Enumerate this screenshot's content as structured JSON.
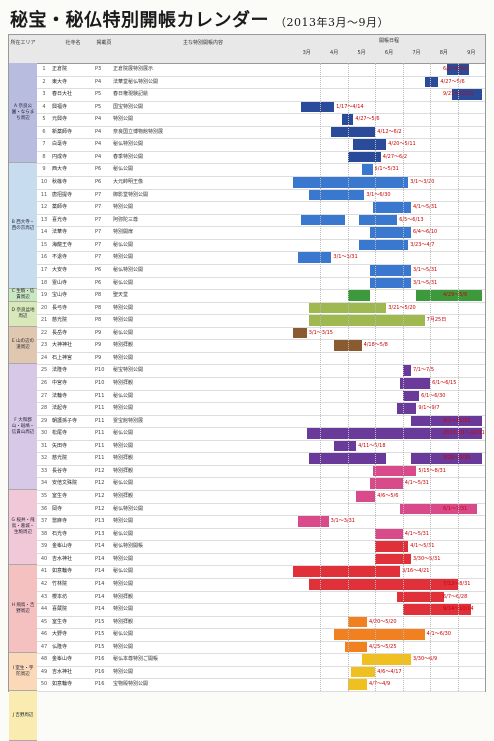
{
  "title": "秘宝・秘仏特別開帳カレンダー",
  "subtitle": "（2013年3月～9月）",
  "header": {
    "area": "所在エリア",
    "temple": "社寺名",
    "page": "掲載頁",
    "content": "主な特別開帳内容",
    "period": "開帳日程",
    "months": [
      "3月",
      "4月",
      "5月",
      "6月",
      "7月",
      "8月",
      "9月"
    ]
  },
  "colors": {
    "navy": "#2a4a9a",
    "blue": "#3a78d0",
    "green": "#3c9a3c",
    "olive": "#a0b850",
    "brown": "#8a5a30",
    "purple": "#6a3a9a",
    "pink": "#d84a8a",
    "red": "#e0303a",
    "orange": "#f08020",
    "yellow": "#f0c020"
  },
  "regions": [
    {
      "name": "A 奈良公園・ならまち周辺",
      "color": "#b8bde0",
      "rows": 8
    },
    {
      "name": "B 西大寺・西の京周辺",
      "color": "#c8dcf0",
      "rows": 10
    },
    {
      "name": "C 生駒・信貴周辺",
      "color": "#c8e8c0",
      "rows": 1
    },
    {
      "name": "D 奈良盆地周辺",
      "color": "#d8e8b8",
      "rows": 2
    },
    {
      "name": "E 山の辺の道周辺",
      "color": "#e0c8b0",
      "rows": 3
    },
    {
      "name": "F 大和郡山・斑鳩・信貴山周辺",
      "color": "#d8c8e8",
      "rows": 10
    },
    {
      "name": "G 桜井・飛鳥・葛城・生駒周辺",
      "color": "#f0c8d8",
      "rows": 6
    },
    {
      "name": "H 飛鳥・吉野周辺",
      "color": "#f5c0c0",
      "rows": 7
    },
    {
      "name": "I 室生・宇陀周辺",
      "color": "#fad8b8",
      "rows": 3
    },
    {
      "name": "J 吉野周辺",
      "color": "#faecb0",
      "rows": 4
    }
  ],
  "rows": [
    {
      "no": "1",
      "temple": "正倉院",
      "pg": "P3",
      "content": "正倉院展特別展示",
      "bars": [
        {
          "s": 5.6,
          "e": 6.4,
          "c": "navy"
        }
      ],
      "lbl": "6/1～6/12"
    },
    {
      "no": "2",
      "temple": "東大寺",
      "pg": "P4",
      "content": "法華堂秘仏特別公開",
      "bars": [
        {
          "s": 4.8,
          "e": 5.3,
          "c": "navy"
        }
      ],
      "lbl": "4/27～5/6"
    },
    {
      "no": "3",
      "temple": "春日大社",
      "pg": "P5",
      "content": "春日権現験記絵",
      "bars": [
        {
          "s": 5.8,
          "e": 6.9,
          "c": "navy"
        }
      ],
      "lbl": "9/21～11/11"
    },
    {
      "no": "4",
      "temple": "興福寺",
      "pg": "P5",
      "content": "国宝特別公開",
      "bars": [
        {
          "s": 0.3,
          "e": 1.5,
          "c": "navy"
        }
      ],
      "lbl": "1/17～4/14"
    },
    {
      "no": "5",
      "temple": "元興寺",
      "pg": "P4",
      "content": "特別公開",
      "bars": [
        {
          "s": 1.8,
          "e": 2.2,
          "c": "navy"
        }
      ],
      "lbl": "4/27～5/6"
    },
    {
      "no": "6",
      "temple": "新薬師寺",
      "pg": "P4",
      "content": "奈良国立博物館特別展",
      "bars": [
        {
          "s": 1.4,
          "e": 3.0,
          "c": "navy"
        }
      ],
      "lbl": "4/12～6/2"
    },
    {
      "no": "7",
      "temple": "白毫寺",
      "pg": "P4",
      "content": "秘仏特別公開",
      "bars": [
        {
          "s": 2.2,
          "e": 3.4,
          "c": "navy"
        }
      ],
      "lbl": "4/20～5/11"
    },
    {
      "no": "8",
      "temple": "円成寺",
      "pg": "P4",
      "content": "春季特別公開",
      "bars": [
        {
          "s": 2.0,
          "e": 3.2,
          "c": "navy"
        }
      ],
      "lbl": "4/27～6/2"
    },
    {
      "no": "9",
      "temple": "西大寺",
      "pg": "P6",
      "content": "秘仏公開",
      "bars": [
        {
          "s": 2.5,
          "e": 2.9,
          "c": "blue"
        }
      ],
      "lbl": "5/1～5/31"
    },
    {
      "no": "10",
      "temple": "秋篠寺",
      "pg": "P6",
      "content": "大元帥明王像",
      "bars": [
        {
          "s": 0,
          "e": 4.2,
          "c": "blue"
        }
      ],
      "lbl": "3/1～3/20"
    },
    {
      "no": "11",
      "temple": "唐招提寺",
      "pg": "P7",
      "content": "御影堂特別公開",
      "bars": [
        {
          "s": 0.6,
          "e": 2.6,
          "c": "blue"
        }
      ],
      "lbl": "3/1～6/30"
    },
    {
      "no": "12",
      "temple": "薬師寺",
      "pg": "P7",
      "content": "特別公開",
      "bars": [
        {
          "s": 2.9,
          "e": 4.3,
          "c": "blue"
        }
      ],
      "lbl": "4/1～5/31"
    },
    {
      "no": "13",
      "temple": "喜光寺",
      "pg": "P7",
      "content": "阿弥陀三尊",
      "bars": [
        {
          "s": 0.3,
          "e": 1.9,
          "c": "blue"
        },
        {
          "s": 2.4,
          "e": 3.8,
          "c": "blue"
        }
      ],
      "lbl": "6/5～6/13"
    },
    {
      "no": "14",
      "temple": "法華寺",
      "pg": "P7",
      "content": "特別開扉",
      "bars": [
        {
          "s": 2.8,
          "e": 4.3,
          "c": "blue"
        }
      ],
      "lbl": "6/4～6/10"
    },
    {
      "no": "15",
      "temple": "海龍王寺",
      "pg": "P7",
      "content": "秘仏公開",
      "bars": [
        {
          "s": 2.4,
          "e": 4.2,
          "c": "blue"
        }
      ],
      "lbl": "3/23～4/7"
    },
    {
      "no": "16",
      "temple": "不退寺",
      "pg": "P7",
      "content": "特別公開",
      "bars": [
        {
          "s": 0.2,
          "e": 1.4,
          "c": "blue"
        }
      ],
      "lbl": "3/1～3/31"
    },
    {
      "no": "17",
      "temple": "大安寺",
      "pg": "P6",
      "content": "秘仏特別公開",
      "bars": [
        {
          "s": 2.8,
          "e": 4.3,
          "c": "blue"
        }
      ],
      "lbl": "3/1～5/31"
    },
    {
      "no": "18",
      "temple": "霊山寺",
      "pg": "P6",
      "content": "秘仏公開",
      "bars": [
        {
          "s": 2.8,
          "e": 4.3,
          "c": "blue"
        }
      ],
      "lbl": "3/1～5/31"
    },
    {
      "no": "19",
      "temple": "宝山寺",
      "pg": "P8",
      "content": "聖天堂",
      "bars": [
        {
          "s": 2.0,
          "e": 2.8,
          "c": "green"
        },
        {
          "s": 4.5,
          "e": 6.9,
          "c": "green"
        }
      ],
      "lbl": "4/29～5/6"
    },
    {
      "no": "20",
      "temple": "長弓寺",
      "pg": "P8",
      "content": "特別公開",
      "bars": [
        {
          "s": 0.6,
          "e": 3.4,
          "c": "olive"
        }
      ],
      "lbl": "3/21～5/20"
    },
    {
      "no": "21",
      "temple": "慈光院",
      "pg": "P8",
      "content": "特別公開",
      "bars": [
        {
          "s": 0.6,
          "e": 4.8,
          "c": "olive"
        }
      ],
      "lbl": "7月25日"
    },
    {
      "no": "22",
      "temple": "長岳寺",
      "pg": "P9",
      "content": "秘仏公開",
      "bars": [
        {
          "s": 0,
          "e": 0.5,
          "c": "brown"
        }
      ],
      "lbl": "3/1～3/15"
    },
    {
      "no": "23",
      "temple": "大神神社",
      "pg": "P9",
      "content": "特別拝観",
      "bars": [
        {
          "s": 1.5,
          "e": 2.5,
          "c": "brown"
        }
      ],
      "lbl": "4/18～5/8"
    },
    {
      "no": "24",
      "temple": "石上神宮",
      "pg": "P9",
      "content": "特別公開",
      "bars": [],
      "lbl": ""
    },
    {
      "no": "25",
      "temple": "法隆寺",
      "pg": "P10",
      "content": "秘宝特別公開",
      "bars": [
        {
          "s": 4.0,
          "e": 4.3,
          "c": "purple"
        }
      ],
      "lbl": "7/1～7/5"
    },
    {
      "no": "26",
      "temple": "中宮寺",
      "pg": "P10",
      "content": "特別拝観",
      "bars": [
        {
          "s": 3.9,
          "e": 5.0,
          "c": "purple"
        }
      ],
      "lbl": "6/1～6/15"
    },
    {
      "no": "27",
      "temple": "法輪寺",
      "pg": "P11",
      "content": "秘仏公開",
      "bars": [
        {
          "s": 4.0,
          "e": 4.6,
          "c": "purple"
        }
      ],
      "lbl": "6/1～6/30"
    },
    {
      "no": "28",
      "temple": "法起寺",
      "pg": "P11",
      "content": "特別公開",
      "bars": [
        {
          "s": 3.8,
          "e": 4.5,
          "c": "purple"
        }
      ],
      "lbl": "9/1～9/7"
    },
    {
      "no": "29",
      "temple": "朝護孫子寺",
      "pg": "P11",
      "content": "霊宝館特別展",
      "bars": [
        {
          "s": 4.3,
          "e": 6.9,
          "c": "purple"
        }
      ],
      "lbl": "9/1～11/10"
    },
    {
      "no": "30",
      "temple": "松尾寺",
      "pg": "P11",
      "content": "秘仏公開",
      "bars": [
        {
          "s": 0.5,
          "e": 6.9,
          "c": "purple"
        }
      ],
      "lbl": "2013.1/1～12/31"
    },
    {
      "no": "31",
      "temple": "矢田寺",
      "pg": "P11",
      "content": "特別公開",
      "bars": [
        {
          "s": 1.5,
          "e": 2.3,
          "c": "purple"
        }
      ],
      "lbl": "4/11～5/18"
    },
    {
      "no": "32",
      "temple": "慈光院",
      "pg": "P11",
      "content": "特別拝観",
      "bars": [
        {
          "s": 0.6,
          "e": 3.4,
          "c": "purple"
        },
        {
          "s": 4.3,
          "e": 6.9,
          "c": "purple"
        }
      ],
      "lbl": "3/20～6/30"
    },
    {
      "no": "33",
      "temple": "長谷寺",
      "pg": "P12",
      "content": "特別拝観",
      "bars": [
        {
          "s": 2.9,
          "e": 4.5,
          "c": "pink"
        }
      ],
      "lbl": "5/15～8/31"
    },
    {
      "no": "34",
      "temple": "安倍文殊院",
      "pg": "P12",
      "content": "秘仏公開",
      "bars": [
        {
          "s": 2.8,
          "e": 4.0,
          "c": "pink"
        }
      ],
      "lbl": "4/1～5/31"
    },
    {
      "no": "35",
      "temple": "室生寺",
      "pg": "P12",
      "content": "特別拝観",
      "bars": [
        {
          "s": 2.3,
          "e": 3.0,
          "c": "pink"
        }
      ],
      "lbl": "4/6～5/6"
    },
    {
      "no": "36",
      "temple": "岡寺",
      "pg": "P12",
      "content": "秘仏特別公開",
      "bars": [
        {
          "s": 3.9,
          "e": 6.7,
          "c": "pink"
        }
      ],
      "lbl": "6/1～7/31"
    },
    {
      "no": "37",
      "temple": "當麻寺",
      "pg": "P13",
      "content": "特別公開",
      "bars": [
        {
          "s": 0.2,
          "e": 1.3,
          "c": "pink"
        }
      ],
      "lbl": "3/1～3/31"
    },
    {
      "no": "38",
      "temple": "石光寺",
      "pg": "P13",
      "content": "秘仏公開",
      "bars": [
        {
          "s": 3.0,
          "e": 4.0,
          "c": "pink"
        }
      ],
      "lbl": "4/1～5/31"
    },
    {
      "no": "39",
      "temple": "金峯山寺",
      "pg": "P14",
      "content": "秘仏特別開帳",
      "bars": [
        {
          "s": 3.0,
          "e": 4.2,
          "c": "red"
        }
      ],
      "lbl": "4/1～5/31"
    },
    {
      "no": "40",
      "temple": "吉水神社",
      "pg": "P14",
      "content": "特別公開",
      "bars": [
        {
          "s": 3.0,
          "e": 4.3,
          "c": "red"
        }
      ],
      "lbl": "3/30～5/31"
    },
    {
      "no": "41",
      "temple": "如意輪寺",
      "pg": "P14",
      "content": "秘仏公開",
      "bars": [
        {
          "s": 0,
          "e": 3.9,
          "c": "red"
        }
      ],
      "lbl": "3/16～4/21"
    },
    {
      "no": "42",
      "temple": "竹林院",
      "pg": "P14",
      "content": "特別公開",
      "bars": [
        {
          "s": 0.6,
          "e": 6.0,
          "c": "red"
        }
      ],
      "lbl": "7/13～8/31"
    },
    {
      "no": "43",
      "temple": "櫻本坊",
      "pg": "P14",
      "content": "特別拝観",
      "bars": [
        {
          "s": 3.8,
          "e": 5.5,
          "c": "red"
        }
      ],
      "lbl": "6/7～6/28"
    },
    {
      "no": "44",
      "temple": "喜蔵院",
      "pg": "P14",
      "content": "特別公開",
      "bars": [
        {
          "s": 4.0,
          "e": 6.5,
          "c": "red"
        }
      ],
      "lbl": "9/14～10/14"
    },
    {
      "no": "45",
      "temple": "室生寺",
      "pg": "P15",
      "content": "特別拝観",
      "bars": [
        {
          "s": 2.0,
          "e": 2.7,
          "c": "orange"
        }
      ],
      "lbl": "4/20～5/20"
    },
    {
      "no": "46",
      "temple": "大野寺",
      "pg": "P15",
      "content": "秘仏公開",
      "bars": [
        {
          "s": 1.5,
          "e": 4.8,
          "c": "orange"
        }
      ],
      "lbl": "4/1～6/30"
    },
    {
      "no": "47",
      "temple": "仏隆寺",
      "pg": "P15",
      "content": "特別公開",
      "bars": [
        {
          "s": 1.9,
          "e": 2.7,
          "c": "orange"
        }
      ],
      "lbl": "4/25～5/25"
    },
    {
      "no": "48",
      "temple": "金峯山寺",
      "pg": "P16",
      "content": "秘仏本尊特別ご開帳",
      "bars": [
        {
          "s": 2.5,
          "e": 4.3,
          "c": "yellow"
        }
      ],
      "lbl": "3/30～6/9"
    },
    {
      "no": "49",
      "temple": "吉水神社",
      "pg": "P16",
      "content": "特別公開",
      "bars": [
        {
          "s": 2.1,
          "e": 3.0,
          "c": "yellow"
        }
      ],
      "lbl": "4/6～4/17"
    },
    {
      "no": "50",
      "temple": "如意輪寺",
      "pg": "P16",
      "content": "宝物殿特別公開",
      "bars": [
        {
          "s": 2.0,
          "e": 2.7,
          "c": "yellow"
        }
      ],
      "lbl": "4/7～4/9"
    }
  ]
}
